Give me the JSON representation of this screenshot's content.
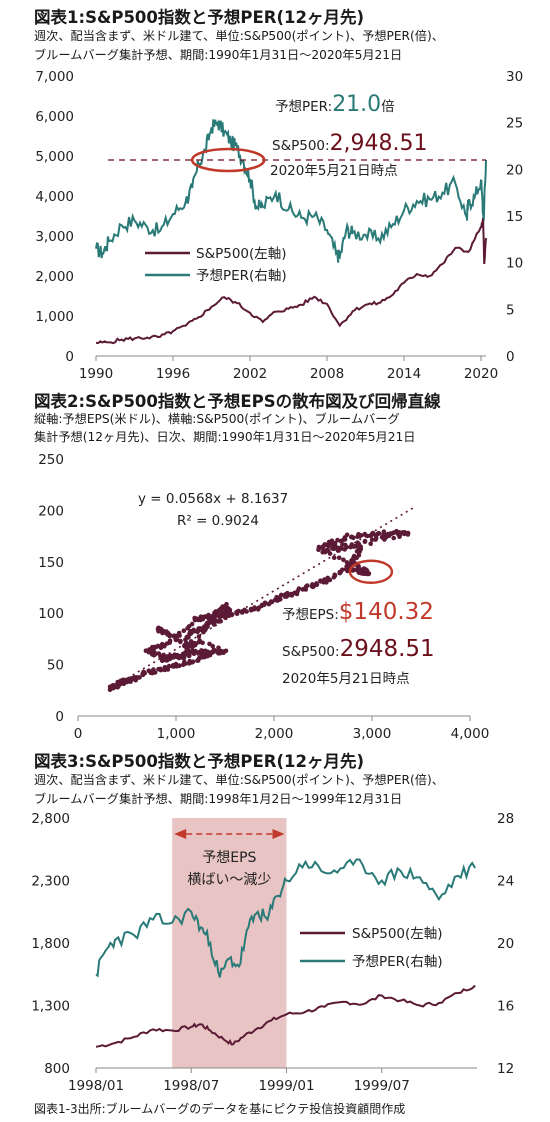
{
  "colors": {
    "sp500": "#5b1a35",
    "per": "#2a7a78",
    "highlight": "#c0392b",
    "shade": "#e8c4c4",
    "dash": "#6b0f1a"
  },
  "fig1": {
    "title": "図表1:S&P500指数と予想PER(12ヶ月先)",
    "subtitle_1": "週次、配当含まず、米ドル建て、単位:S&P500(ポイント)、予想PER(倍)、",
    "subtitle_2": "ブルームバーグ集計予想、期間:1990年1月31日～2020年5月21日",
    "per_label": "予想PER:",
    "per_value": "21.0",
    "per_unit": "倍",
    "sp_label": "S&P500:",
    "sp_value": "2,948.51",
    "date_note": "2020年5月21日時点"
  },
  "fig2": {
    "title": "図表2:S&P500指数と予想EPSの散布図及び回帰直線",
    "subtitle_1": "縦軸:予想EPS(米ドル)、横軸:S&P500(ポイント)、ブルームバーグ",
    "subtitle_2": "集計予想(12ヶ月先)、日次、期間:1990年1月31日～2020年5月21日",
    "equation": "y = 0.0568x + 8.1637",
    "r2": "R² = 0.9024",
    "eps_label": "予想EPS:",
    "eps_value": "$140.32",
    "sp_label": "S&P500:",
    "sp_value": "2948.51",
    "date_note": "2020年5月21日時点"
  },
  "fig3": {
    "title": "図表3:S&P500指数と予想PER(12ヶ月先)",
    "subtitle_1": "週次、配当含まず、米ドル建て、単位:S&P500(ポイント)、予想PER(倍)、",
    "subtitle_2": "ブルームバーグ集計予想、期間:1998年1月2日～1999年12月31日",
    "annot_1": "予想EPS",
    "annot_2": "横ばい～減少"
  },
  "source": "図表1-3出所:ブルームバーグのデータを基にピクテ投信投資顧問作成",
  "chart_data": [
    {
      "type": "line",
      "x_ticks": [
        "1990",
        "1996",
        "2002",
        "2008",
        "2014",
        "2020"
      ],
      "ylim_left": [
        0,
        7000
      ],
      "y_ticks_left": [
        "0",
        "1,000",
        "2,000",
        "3,000",
        "4,000",
        "5,000",
        "6,000",
        "7,000"
      ],
      "ylim_right": [
        0,
        30
      ],
      "y_ticks_right": [
        "0",
        "5",
        "10",
        "15",
        "20",
        "25",
        "30"
      ],
      "legend_position": "center-left",
      "series": [
        {
          "name": "S&P500(左軸)",
          "axis": "left",
          "x": [
            1990,
            1991,
            1992,
            1993,
            1994,
            1995,
            1996,
            1997,
            1998,
            1999,
            2000,
            2001,
            2002,
            2003,
            2004,
            2005,
            2006,
            2007,
            2008,
            2009,
            2010,
            2011,
            2012,
            2013,
            2014,
            2015,
            2016,
            2017,
            2018,
            2019,
            2020.0,
            2020.17,
            2020.25,
            2020.39
          ],
          "values": [
            330,
            340,
            410,
            440,
            460,
            480,
            620,
            760,
            970,
            1230,
            1470,
            1320,
            1080,
            850,
            1110,
            1180,
            1280,
            1480,
            1300,
            760,
            1120,
            1280,
            1320,
            1500,
            1830,
            2050,
            2000,
            2300,
            2700,
            2600,
            3230,
            3380,
            2300,
            2948
          ]
        },
        {
          "name": "予想PER(右軸)",
          "axis": "right",
          "x": [
            1990,
            1990.5,
            1991,
            1992,
            1993,
            1994,
            1995,
            1996,
            1997,
            1997.5,
            1998,
            1998.5,
            1999,
            1999.5,
            2000,
            2000.5,
            2001,
            2001.5,
            2002,
            2002.5,
            2003,
            2004,
            2005,
            2006,
            2007,
            2008,
            2008.7,
            2009,
            2009.5,
            2010,
            2011,
            2012,
            2013,
            2014,
            2015,
            2016,
            2017,
            2018,
            2018.9,
            2019,
            2019.5,
            2020.0,
            2020.2,
            2020.39
          ],
          "values": [
            11.5,
            11.0,
            12.3,
            14.0,
            14.5,
            13.8,
            13.4,
            15.2,
            16.6,
            18.0,
            20.5,
            22.0,
            24.5,
            25.0,
            24.0,
            23.0,
            22.3,
            20.8,
            19.0,
            16.0,
            16.0,
            17.5,
            15.7,
            14.8,
            15.0,
            13.5,
            11.0,
            10.6,
            13.5,
            13.2,
            13.0,
            12.6,
            13.8,
            15.6,
            16.6,
            16.8,
            17.5,
            18.5,
            14.8,
            16.3,
            17.0,
            18.8,
            14.5,
            21.0
          ]
        }
      ]
    },
    {
      "type": "scatter",
      "xlabel": "",
      "ylabel": "",
      "xlim": [
        0,
        4000
      ],
      "x_ticks": [
        "0",
        "1,000",
        "2,000",
        "3,000",
        "4,000"
      ],
      "ylim": [
        0,
        250
      ],
      "y_ticks": [
        "0",
        "50",
        "100",
        "150",
        "200",
        "250"
      ],
      "regression": {
        "slope": 0.0568,
        "intercept": 8.1637,
        "r2": 0.9024
      },
      "points": [
        [
          330,
          27
        ],
        [
          380,
          29
        ],
        [
          420,
          32
        ],
        [
          470,
          34
        ],
        [
          560,
          36
        ],
        [
          700,
          42
        ],
        [
          900,
          46
        ],
        [
          1100,
          52
        ],
        [
          1300,
          58
        ],
        [
          1350,
          62
        ],
        [
          950,
          57
        ],
        [
          850,
          55
        ],
        [
          1150,
          62
        ],
        [
          1400,
          63
        ],
        [
          1500,
          63
        ],
        [
          800,
          85
        ],
        [
          900,
          80
        ],
        [
          1100,
          68
        ],
        [
          1200,
          70
        ],
        [
          1400,
          100
        ],
        [
          1500,
          107
        ],
        [
          1550,
          100
        ],
        [
          1300,
          96
        ],
        [
          1200,
          94
        ],
        [
          900,
          70
        ],
        [
          700,
          64
        ],
        [
          850,
          58
        ],
        [
          1100,
          58
        ],
        [
          1130,
          80
        ],
        [
          1260,
          85
        ],
        [
          1420,
          93
        ],
        [
          1600,
          100
        ],
        [
          1850,
          105
        ],
        [
          2050,
          115
        ],
        [
          2200,
          120
        ],
        [
          2400,
          127
        ],
        [
          2600,
          135
        ],
        [
          2800,
          150
        ],
        [
          2900,
          165
        ],
        [
          2500,
          165
        ],
        [
          2750,
          175
        ],
        [
          3000,
          177
        ],
        [
          3200,
          178
        ],
        [
          3380,
          178
        ],
        [
          3000,
          170
        ],
        [
          2650,
          162
        ],
        [
          2450,
          163
        ],
        [
          2950,
          140
        ],
        [
          2750,
          143
        ],
        [
          2800,
          148
        ],
        [
          2948,
          140
        ]
      ],
      "highlight": [
        2948.51,
        140.32
      ]
    },
    {
      "type": "line",
      "x_ticks": [
        "1998/01",
        "1998/07",
        "1999/01",
        "1999/07"
      ],
      "ylim_left": [
        800,
        2800
      ],
      "y_ticks_left": [
        "800",
        "1,300",
        "1,800",
        "2,300",
        "2,800"
      ],
      "ylim_right": [
        12,
        28
      ],
      "y_ticks_right": [
        "12",
        "16",
        "20",
        "24",
        "28"
      ],
      "shaded_range": [
        1998.4,
        1999.0
      ],
      "legend_position": "center-right",
      "series": [
        {
          "name": "S&P500(左軸)",
          "axis": "left",
          "x": [
            1998.0,
            1998.1,
            1998.2,
            1998.3,
            1998.4,
            1998.5,
            1998.55,
            1998.6,
            1998.67,
            1998.72,
            1998.78,
            1998.85,
            1998.92,
            1999.0,
            1999.1,
            1999.2,
            1999.3,
            1999.4,
            1999.5,
            1999.6,
            1999.7,
            1999.8,
            1999.9,
            1999.99
          ],
          "values": [
            970,
            1000,
            1050,
            1110,
            1100,
            1130,
            1150,
            1100,
            1030,
            990,
            1060,
            1120,
            1180,
            1230,
            1250,
            1290,
            1330,
            1310,
            1380,
            1340,
            1300,
            1320,
            1400,
            1460
          ]
        },
        {
          "name": "予想PER(右軸)",
          "axis": "right",
          "x": [
            1998.0,
            1998.05,
            1998.1,
            1998.2,
            1998.3,
            1998.4,
            1998.5,
            1998.55,
            1998.6,
            1998.65,
            1998.7,
            1998.75,
            1998.8,
            1998.85,
            1998.9,
            1998.95,
            1999.0,
            1999.1,
            1999.2,
            1999.3,
            1999.4,
            1999.5,
            1999.6,
            1999.7,
            1999.8,
            1999.9,
            1999.99
          ],
          "values": [
            18.0,
            19.5,
            20.2,
            20.5,
            21.5,
            21.3,
            22.0,
            21.0,
            20.0,
            17.8,
            19.0,
            18.5,
            21.0,
            22.0,
            21.5,
            23.0,
            24.0,
            25.2,
            24.5,
            24.8,
            25.0,
            24.0,
            24.6,
            24.2,
            22.8,
            24.3,
            24.8
          ]
        }
      ]
    }
  ]
}
